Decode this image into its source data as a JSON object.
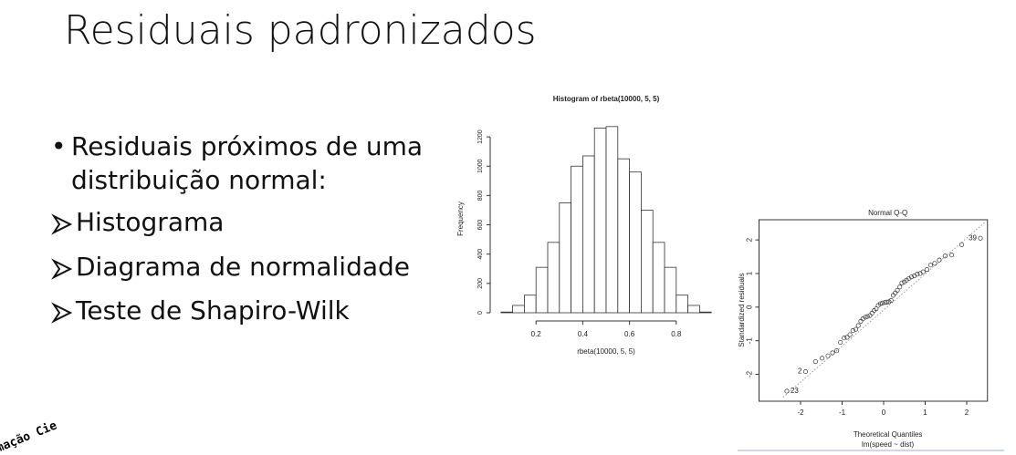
{
  "title": "Residuais padronizados",
  "bullets": [
    {
      "text": "Residuais próximos de uma distribuição normal:",
      "subitems": [
        "Histograma",
        "Diagrama de normalidade",
        "Teste de Shapiro-Wilk"
      ]
    }
  ],
  "logo": "mação Cie",
  "chart_data": [
    {
      "type": "histogram",
      "title": "Histogram of rbeta(10000, 5, 5)",
      "x_label": "rbeta(10000, 5, 5)",
      "y_label": "Frequency",
      "bins": [
        0.05,
        0.1,
        0.15,
        0.2,
        0.25,
        0.3,
        0.35,
        0.4,
        0.45,
        0.5,
        0.55,
        0.6,
        0.65,
        0.7,
        0.75,
        0.8,
        0.85,
        0.9,
        0.95
      ],
      "values": [
        5,
        50,
        120,
        310,
        480,
        750,
        1000,
        1070,
        1260,
        1270,
        1050,
        960,
        700,
        480,
        310,
        120,
        50,
        5
      ],
      "color": "#ffffff",
      "edge_color": "#333333",
      "xlim": [
        0,
        1
      ],
      "xticks": [
        0.2,
        0.4,
        0.6,
        0.8
      ],
      "ylim": [
        0,
        1300
      ],
      "yticks": [
        0,
        200,
        400,
        600,
        800,
        1000,
        1200
      ]
    },
    {
      "type": "scatter",
      "title": "Normal Q-Q",
      "x_label": "Theoretical Quantiles",
      "subtitle": "lm(speed ~ dist)",
      "y_label": "Standardized residuals",
      "x": [
        -2.33,
        -1.88,
        -1.64,
        -1.48,
        -1.34,
        -1.23,
        -1.13,
        -1.04,
        -0.95,
        -0.88,
        -0.81,
        -0.74,
        -0.67,
        -0.61,
        -0.55,
        -0.5,
        -0.44,
        -0.39,
        -0.33,
        -0.28,
        -0.23,
        -0.18,
        -0.13,
        -0.08,
        -0.03,
        0.03,
        0.08,
        0.13,
        0.18,
        0.23,
        0.28,
        0.33,
        0.39,
        0.44,
        0.5,
        0.55,
        0.61,
        0.67,
        0.74,
        0.81,
        0.88,
        0.95,
        1.04,
        1.13,
        1.23,
        1.34,
        1.48,
        1.64,
        1.88,
        2.33
      ],
      "values": [
        -2.5,
        -1.92,
        -1.62,
        -1.52,
        -1.45,
        -1.36,
        -1.3,
        -1.05,
        -0.92,
        -0.9,
        -0.82,
        -0.7,
        -0.66,
        -0.55,
        -0.42,
        -0.35,
        -0.3,
        -0.28,
        -0.25,
        -0.18,
        -0.1,
        -0.05,
        0.05,
        0.1,
        0.12,
        0.14,
        0.15,
        0.16,
        0.2,
        0.35,
        0.42,
        0.5,
        0.6,
        0.72,
        0.75,
        0.8,
        0.85,
        0.9,
        0.93,
        0.98,
        1.0,
        1.05,
        1.12,
        1.25,
        1.3,
        1.4,
        1.52,
        1.55,
        1.86,
        2.05
      ],
      "point_labels": [
        {
          "index": 0,
          "label": "23"
        },
        {
          "index": 1,
          "label": "2"
        },
        {
          "index": 49,
          "label": "39"
        }
      ],
      "reference_line": {
        "x": [
          -2.42,
          2.46
        ],
        "y": [
          -2.68,
          2.55
        ]
      },
      "color": "#333333",
      "xlim": [
        -3.0,
        2.5
      ],
      "xticks": [
        -2,
        -1,
        0,
        1,
        2
      ],
      "ylim": [
        -2.8,
        2.6
      ],
      "yticks": [
        -2,
        -1,
        0,
        1,
        2
      ]
    }
  ]
}
